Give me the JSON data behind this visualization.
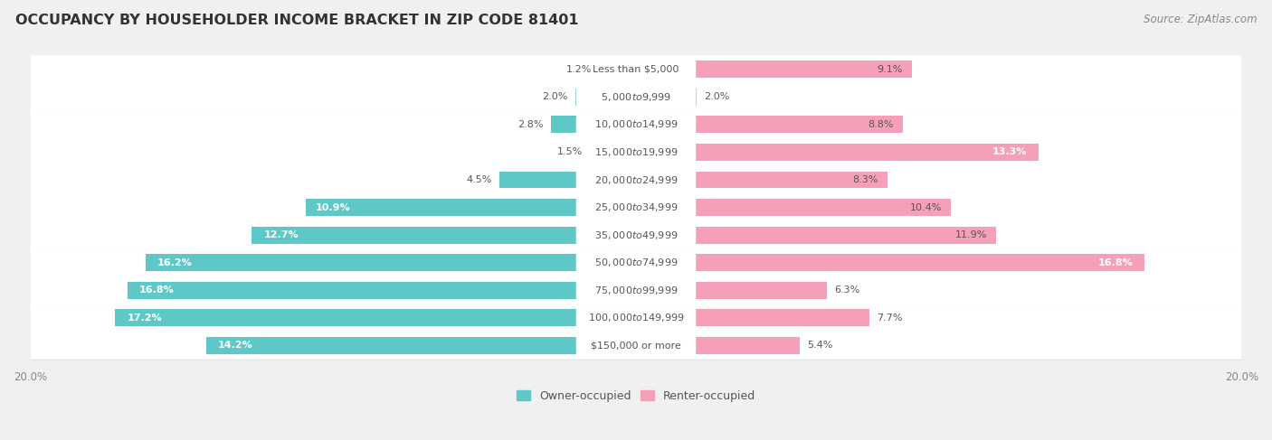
{
  "title": "OCCUPANCY BY HOUSEHOLDER INCOME BRACKET IN ZIP CODE 81401",
  "source": "Source: ZipAtlas.com",
  "categories": [
    "Less than $5,000",
    "$5,000 to $9,999",
    "$10,000 to $14,999",
    "$15,000 to $19,999",
    "$20,000 to $24,999",
    "$25,000 to $34,999",
    "$35,000 to $49,999",
    "$50,000 to $74,999",
    "$75,000 to $99,999",
    "$100,000 to $149,999",
    "$150,000 or more"
  ],
  "owner_values": [
    1.2,
    2.0,
    2.8,
    1.5,
    4.5,
    10.9,
    12.7,
    16.2,
    16.8,
    17.2,
    14.2
  ],
  "renter_values": [
    9.1,
    2.0,
    8.8,
    13.3,
    8.3,
    10.4,
    11.9,
    16.8,
    6.3,
    7.7,
    5.4
  ],
  "owner_color": "#5EC8C8",
  "renter_color": "#F5A0B8",
  "xlim": 20.0,
  "background_color": "#f0f0f0",
  "bar_row_bg": "#ffffff",
  "label_pill_bg": "#ffffff",
  "title_fontsize": 11.5,
  "source_fontsize": 8.5,
  "value_fontsize": 8.0,
  "category_fontsize": 8.0,
  "legend_fontsize": 9,
  "axis_label_fontsize": 8.5
}
